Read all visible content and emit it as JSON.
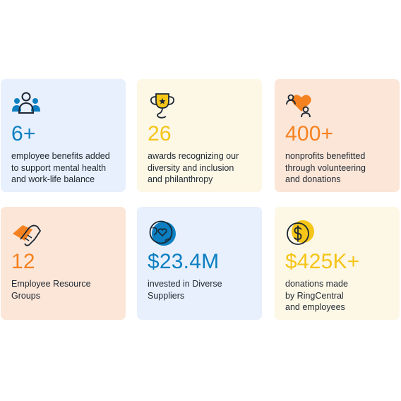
{
  "colors": {
    "blue": "#0b7fc1",
    "yellow": "#f5c518",
    "orange": "#f58220",
    "navy": "#1c2733"
  },
  "cards": [
    {
      "icon": "people-icon",
      "value": "6+",
      "value_color": "#0b7fc1",
      "lines": [
        "employee benefits added",
        "to support mental health",
        "and work-life balance"
      ]
    },
    {
      "icon": "trophy-icon",
      "value": "26",
      "value_color": "#f5c518",
      "lines": [
        "awards recognizing our",
        "diversity and inclusion",
        "and philanthropy"
      ]
    },
    {
      "icon": "heart-people-icon",
      "value": "400+",
      "value_color": "#f58220",
      "lines": [
        "nonprofits benefitted",
        "through volunteering",
        "and donations"
      ]
    },
    {
      "icon": "handshake-icon",
      "value": "12",
      "value_color": "#f58220",
      "lines": [
        "Employee Resource",
        "Groups"
      ]
    },
    {
      "icon": "globe-heart-icon",
      "value": "$23.4M",
      "value_color": "#0b7fc1",
      "lines": [
        "invested in Diverse",
        "Suppliers"
      ]
    },
    {
      "icon": "dollar-coin-icon",
      "value": "$425K+",
      "value_color": "#f5c518",
      "lines": [
        "donations made",
        "by RingCentral",
        "and employees"
      ]
    }
  ]
}
